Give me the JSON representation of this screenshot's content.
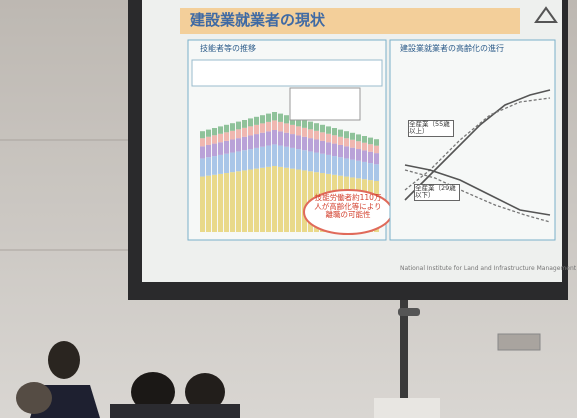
{
  "slide": {
    "title": "建設業就業者の現状",
    "left_panel": {
      "title": "技能者等の推移",
      "callout": "技能労働者約110万人が高齢化等により離職の可能性"
    },
    "right_panel": {
      "title": "建設業就業者の高齢化の進行",
      "label_55": "全産業（55歳以上）",
      "label_29": "全産業（29歳以下）"
    },
    "footer": "National Institute for Land and Infrastructure Management"
  }
}
